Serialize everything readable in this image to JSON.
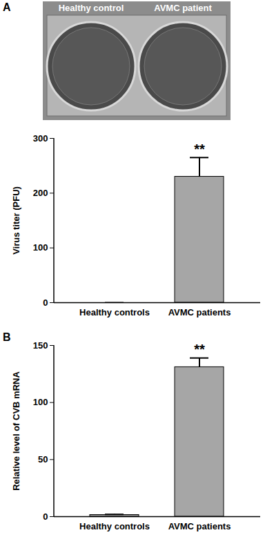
{
  "photo": {
    "panel": "A",
    "labels": [
      "Healthy control",
      "AVMC patient"
    ]
  },
  "chart_data": [
    {
      "type": "bar",
      "categories": [
        "Healthy controls",
        "AVMC patients"
      ],
      "values": [
        0,
        230
      ],
      "errors": [
        0,
        35
      ],
      "color": "#a6a6a6",
      "ylabel": "Virus titer (PFU)",
      "ylim": [
        0,
        300
      ],
      "yticks": [
        0,
        100,
        200,
        300
      ],
      "annotations": [
        {
          "text": "**",
          "category": "AVMC patients"
        }
      ]
    },
    {
      "type": "bar",
      "title": "B",
      "categories": [
        "Healthy controls",
        "AVMC patients"
      ],
      "values": [
        1.5,
        131
      ],
      "errors": [
        0.5,
        8
      ],
      "color": "#a6a6a6",
      "ylabel": "Relative level of CVB mRNA",
      "ylim": [
        0,
        150
      ],
      "yticks": [
        0,
        50,
        100,
        150
      ],
      "annotations": [
        {
          "text": "**",
          "category": "AVMC patients"
        }
      ]
    }
  ]
}
